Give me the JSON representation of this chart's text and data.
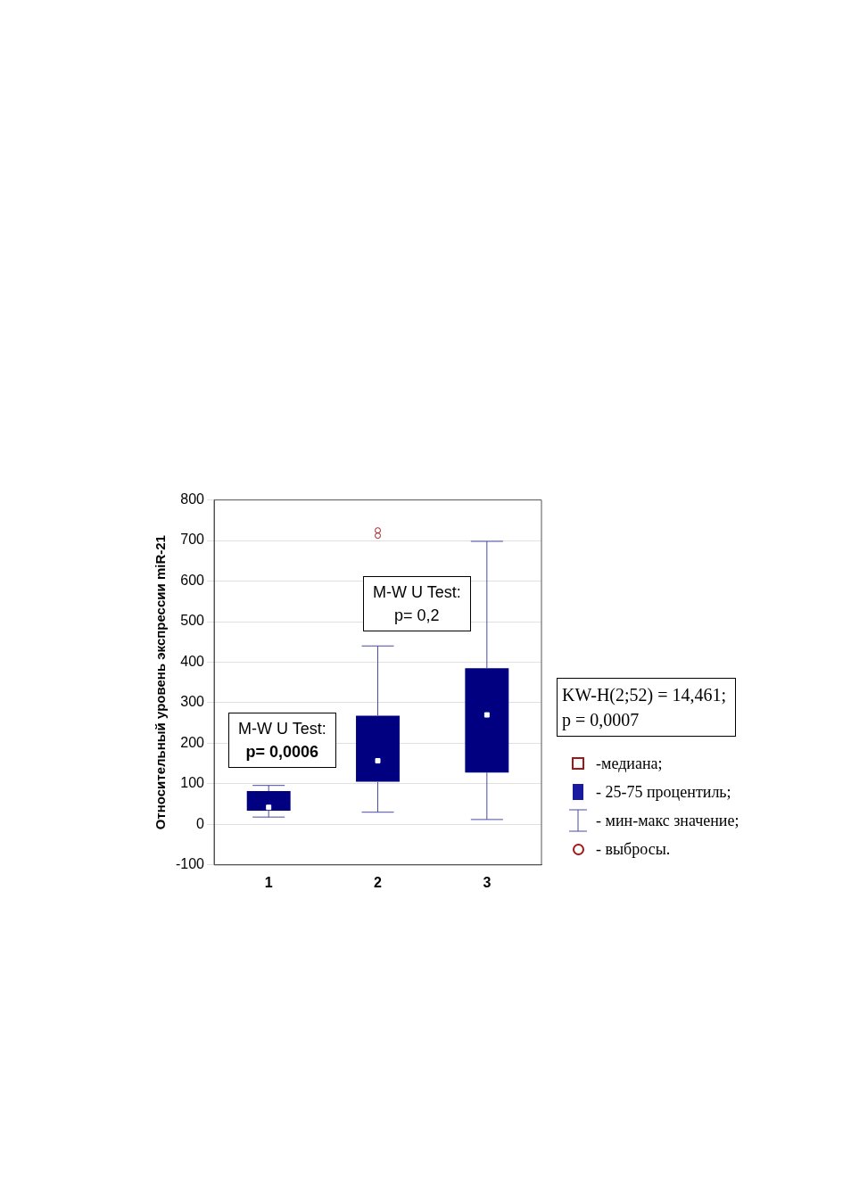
{
  "chart_data": {
    "type": "box",
    "ylabel": "Относительный уровень экспрессии miR-21",
    "categories": [
      "1",
      "2",
      "3"
    ],
    "ylim": [
      -100,
      800
    ],
    "yticks": [
      -100,
      0,
      100,
      200,
      300,
      400,
      500,
      600,
      700,
      800
    ],
    "grid": "y",
    "series": [
      {
        "color": "#000080",
        "boxes": [
          {
            "low": 18,
            "q1": 34,
            "median": 42,
            "q3": 82,
            "high": 96
          },
          {
            "low": 30,
            "q1": 105,
            "median": 157,
            "q3": 268,
            "high": 440,
            "outliers": [
              712,
              725
            ]
          },
          {
            "low": 12,
            "q1": 128,
            "median": 270,
            "q3": 385,
            "high": 698
          }
        ]
      }
    ],
    "annotations": [
      "M-W U Test:\np= 0,0006",
      "M-W U Test:\np= 0,2",
      "KW-H(2;52) = 14,461;\np = 0,0007",
      "-медиана;",
      "- 25-75 процентиль;",
      "- мин-макс значение;",
      "- выбросы."
    ]
  }
}
